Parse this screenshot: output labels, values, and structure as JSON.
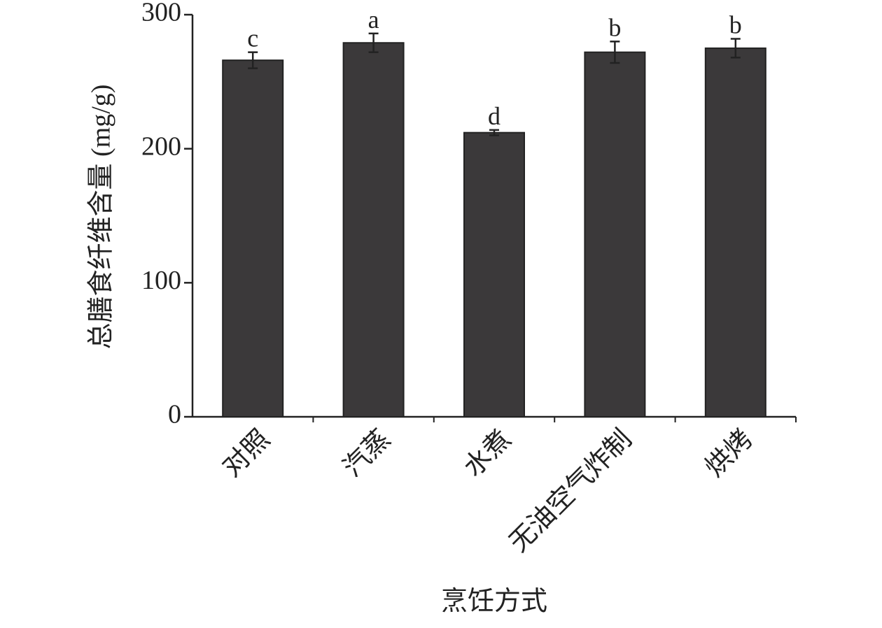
{
  "chart_data": {
    "type": "bar",
    "x_label": "烹饪方式",
    "y_label": "总膳食纤维含量 (mg/g)",
    "categories": [
      "对照",
      "汽蒸",
      "水煮",
      "无油空气炸制",
      "烘烤"
    ],
    "series": [
      {
        "color": "#3b393a",
        "values": [
          266,
          279,
          212,
          272,
          275
        ],
        "errors": [
          6,
          7,
          2,
          8,
          7
        ],
        "significance_labels": [
          "c",
          "a",
          "d",
          "b",
          "b"
        ]
      }
    ],
    "ylim": [
      0,
      300
    ],
    "yticks": [
      0,
      100,
      200,
      300
    ],
    "grid": false
  }
}
